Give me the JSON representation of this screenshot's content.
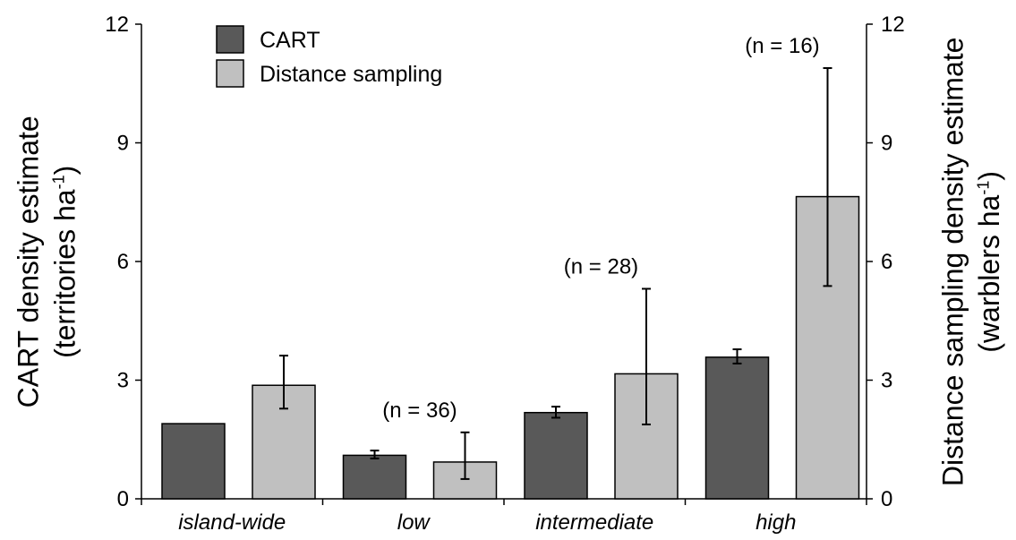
{
  "chart_data": {
    "type": "bar",
    "categories": [
      "island-wide",
      "low",
      "intermediate",
      "high"
    ],
    "series": [
      {
        "name": "CART",
        "color": "#595959",
        "values": [
          1.9,
          1.1,
          2.18,
          3.58
        ],
        "err_low": [
          null,
          1.02,
          2.05,
          3.42
        ],
        "err_high": [
          null,
          1.22,
          2.33,
          3.78
        ]
      },
      {
        "name": "Distance sampling",
        "color": "#c0c0c0",
        "values": [
          2.87,
          0.93,
          3.16,
          7.64
        ],
        "err_low": [
          2.28,
          0.5,
          1.88,
          5.38
        ],
        "err_high": [
          3.62,
          1.68,
          5.31,
          10.89
        ]
      }
    ],
    "annotations": [
      "(n = 36)",
      "(n = 28)",
      "(n = 16)"
    ],
    "ylim": [
      0,
      12
    ],
    "yticks": [
      "0",
      "3",
      "6",
      "9",
      "12"
    ],
    "ylabel_left_line1": "CART density estimate",
    "ylabel_left_line2_prefix": "(territories ha",
    "ylabel_left_line2_sup": "-1",
    "ylabel_left_line2_suffix": ")",
    "ylabel_right_line1": "Distance sampling density estimate",
    "ylabel_right_line2_prefix": "(warblers ha",
    "ylabel_right_line2_sup": "-1",
    "ylabel_right_line2_suffix": ")",
    "legend_position": "top-left",
    "grid": false
  }
}
